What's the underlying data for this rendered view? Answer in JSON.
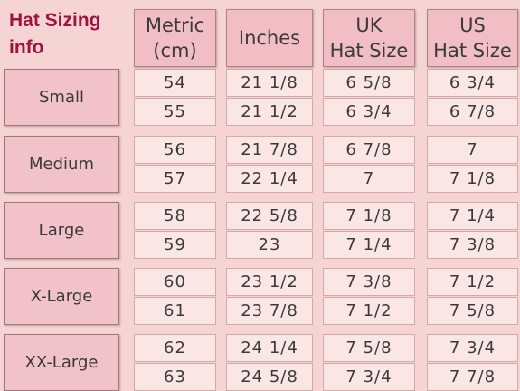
{
  "header": {
    "title": [
      "Hat Sizing",
      "info"
    ]
  },
  "table": {
    "columns": [
      [
        "Metric",
        "(cm)"
      ],
      [
        "Inches"
      ],
      [
        "UK",
        "Hat Size"
      ],
      [
        "US",
        "Hat Size"
      ]
    ],
    "groups": [
      {
        "size": "Small",
        "rows": [
          [
            "54",
            "21 1/8",
            "6 5/8",
            "6 3/4"
          ],
          [
            "55",
            "21 1/2",
            "6 3/4",
            "6 7/8"
          ]
        ]
      },
      {
        "size": "Medium",
        "rows": [
          [
            "56",
            "21 7/8",
            "6 7/8",
            "7"
          ],
          [
            "57",
            "22 1/4",
            "7",
            "7 1/8"
          ]
        ]
      },
      {
        "size": "Large",
        "rows": [
          [
            "58",
            "22 5/8",
            "7 1/8",
            "7 1/4"
          ],
          [
            "59",
            "23",
            "7 1/4",
            "7 3/8"
          ]
        ]
      },
      {
        "size": "X-Large",
        "rows": [
          [
            "60",
            "23 1/2",
            "7 3/8",
            "7 1/2"
          ],
          [
            "61",
            "23 7/8",
            "7 1/2",
            "7 5/8"
          ]
        ]
      },
      {
        "size": "XX-Large",
        "rows": [
          [
            "62",
            "24 1/4",
            "7 5/8",
            "7 3/4"
          ],
          [
            "63",
            "24 5/8",
            "7 3/4",
            "7 7/8"
          ]
        ]
      }
    ]
  }
}
